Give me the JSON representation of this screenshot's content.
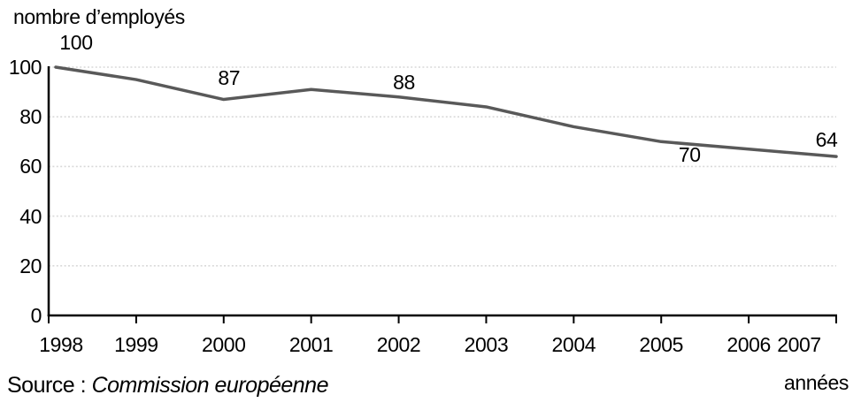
{
  "chart_data": {
    "type": "line",
    "title": "nombre d’employés",
    "xlabel": "années",
    "x": [
      1998,
      1999,
      2000,
      2001,
      2002,
      2003,
      2004,
      2005,
      2006,
      2007
    ],
    "values": [
      100,
      95,
      87,
      91,
      88,
      84,
      76,
      70,
      67,
      64
    ],
    "x_tick_labels": [
      "1998",
      "1999",
      "2000",
      "2001",
      "2002",
      "2003",
      "2004",
      "2005",
      "2006",
      "2007"
    ],
    "yticks": [
      0,
      20,
      40,
      60,
      80,
      100
    ],
    "ytick_labels": [
      "0",
      "20",
      "40",
      "60",
      "80",
      "100"
    ],
    "ylim": [
      0,
      100
    ],
    "point_labels": [
      {
        "year": 1998,
        "value": 100,
        "text": "100",
        "placement": "above"
      },
      {
        "year": 2000,
        "value": 87,
        "text": "87",
        "placement": "above"
      },
      {
        "year": 2002,
        "value": 88,
        "text": "88",
        "placement": "above"
      },
      {
        "year": 2005,
        "value": 70,
        "text": "70",
        "placement": "below"
      },
      {
        "year": 2007,
        "value": 64,
        "text": "64",
        "placement": "above"
      }
    ],
    "grid": "horizontal-dotted",
    "legend": "none",
    "colors": {
      "line": "#595959",
      "grid": "#d9d9d9",
      "axis": "#000000",
      "text": "#000000"
    },
    "source": {
      "prefix": "Source :",
      "name": "Commission européenne"
    }
  }
}
